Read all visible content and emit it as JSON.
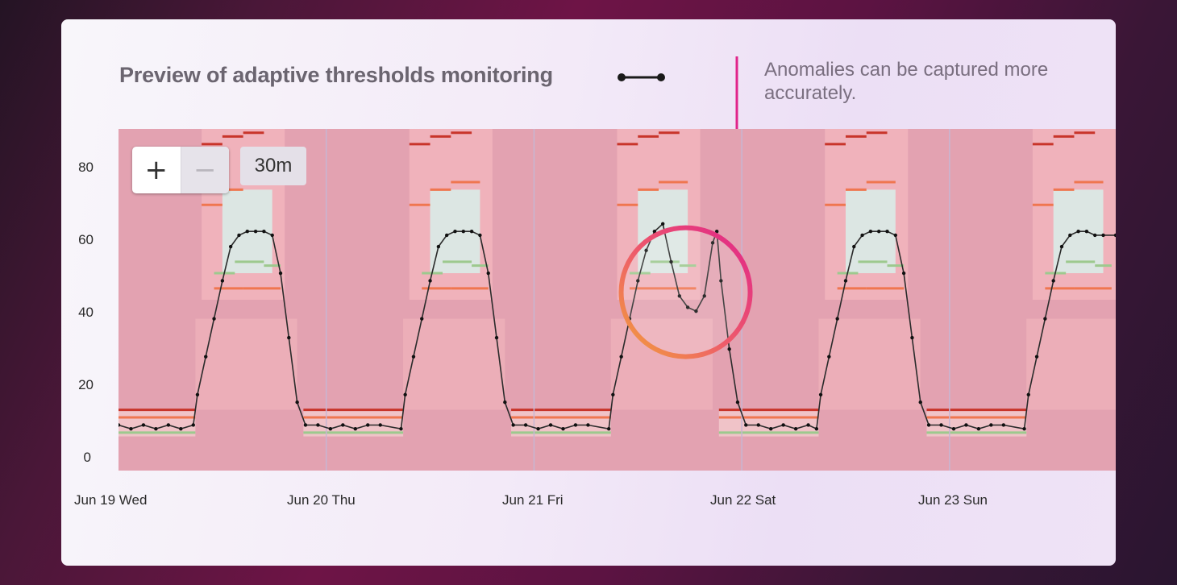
{
  "title": "Preview of adaptive thresholds monitoring",
  "annotation": "Anomalies can be captured more accurately.",
  "controls": {
    "zoom_in": "+",
    "zoom_out": "−",
    "range": "30m"
  },
  "colors": {
    "accent": "#e0248a",
    "line": "#2b2b2b",
    "outer_band": "#f2b5bd",
    "inner_band": "#dce6e3",
    "threshold_high": "#c8342a",
    "threshold_mid": "#ef7650",
    "threshold_low": "#9dc98e"
  },
  "chart_data": {
    "type": "line",
    "title": "",
    "xlabel": "",
    "ylabel": "",
    "ylim": [
      0,
      90
    ],
    "xlim": [
      0,
      4.8
    ],
    "yticks": [
      "0",
      "20",
      "40",
      "60",
      "80"
    ],
    "xticks": [
      {
        "label": "Jun 19 Wed",
        "x": 0
      },
      {
        "label": "Jun 20 Thu",
        "x": 1
      },
      {
        "label": "Jun 21 Fri",
        "x": 2
      },
      {
        "label": "Jun 22 Sat",
        "x": 3
      },
      {
        "label": "Jun 23 Sun",
        "x": 4
      }
    ],
    "grid": false,
    "legend": "none",
    "series": [
      {
        "points": [
          [
            0.0,
            12
          ],
          [
            0.06,
            11
          ],
          [
            0.12,
            12
          ],
          [
            0.18,
            11
          ],
          [
            0.24,
            12
          ],
          [
            0.3,
            11
          ],
          [
            0.36,
            12
          ],
          [
            0.38,
            20
          ],
          [
            0.42,
            30
          ],
          [
            0.46,
            40
          ],
          [
            0.5,
            50
          ],
          [
            0.54,
            59
          ],
          [
            0.58,
            62
          ],
          [
            0.62,
            63
          ],
          [
            0.66,
            63
          ],
          [
            0.7,
            63
          ],
          [
            0.74,
            62
          ],
          [
            0.78,
            52
          ],
          [
            0.82,
            35
          ],
          [
            0.86,
            18
          ],
          [
            0.9,
            12
          ],
          [
            0.96,
            12
          ],
          [
            1.02,
            11
          ],
          [
            1.08,
            12
          ],
          [
            1.14,
            11
          ],
          [
            1.2,
            12
          ],
          [
            1.26,
            12
          ],
          [
            1.36,
            11
          ],
          [
            1.38,
            20
          ],
          [
            1.42,
            30
          ],
          [
            1.46,
            40
          ],
          [
            1.5,
            50
          ],
          [
            1.54,
            59
          ],
          [
            1.58,
            62
          ],
          [
            1.62,
            63
          ],
          [
            1.66,
            63
          ],
          [
            1.7,
            63
          ],
          [
            1.74,
            62
          ],
          [
            1.78,
            52
          ],
          [
            1.82,
            35
          ],
          [
            1.86,
            18
          ],
          [
            1.9,
            12
          ],
          [
            1.96,
            12
          ],
          [
            2.02,
            11
          ],
          [
            2.08,
            12
          ],
          [
            2.14,
            11
          ],
          [
            2.2,
            12
          ],
          [
            2.26,
            12
          ],
          [
            2.36,
            11
          ],
          [
            2.38,
            20
          ],
          [
            2.42,
            30
          ],
          [
            2.46,
            40
          ],
          [
            2.5,
            50
          ],
          [
            2.54,
            58
          ],
          [
            2.58,
            63
          ],
          [
            2.62,
            65
          ],
          [
            2.66,
            55
          ],
          [
            2.7,
            46
          ],
          [
            2.74,
            43
          ],
          [
            2.78,
            42
          ],
          [
            2.82,
            46
          ],
          [
            2.86,
            60
          ],
          [
            2.88,
            63
          ],
          [
            2.9,
            50
          ],
          [
            2.94,
            32
          ],
          [
            2.98,
            18
          ],
          [
            3.02,
            12
          ],
          [
            3.08,
            12
          ],
          [
            3.14,
            11
          ],
          [
            3.2,
            12
          ],
          [
            3.26,
            11
          ],
          [
            3.32,
            12
          ],
          [
            3.36,
            11
          ],
          [
            3.38,
            20
          ],
          [
            3.42,
            30
          ],
          [
            3.46,
            40
          ],
          [
            3.5,
            50
          ],
          [
            3.54,
            59
          ],
          [
            3.58,
            62
          ],
          [
            3.62,
            63
          ],
          [
            3.66,
            63
          ],
          [
            3.7,
            63
          ],
          [
            3.74,
            62
          ],
          [
            3.78,
            52
          ],
          [
            3.82,
            35
          ],
          [
            3.86,
            18
          ],
          [
            3.9,
            12
          ],
          [
            3.96,
            12
          ],
          [
            4.02,
            11
          ],
          [
            4.08,
            12
          ],
          [
            4.14,
            11
          ],
          [
            4.2,
            12
          ],
          [
            4.26,
            12
          ],
          [
            4.36,
            11
          ],
          [
            4.38,
            20
          ],
          [
            4.42,
            30
          ],
          [
            4.46,
            40
          ],
          [
            4.5,
            50
          ],
          [
            4.54,
            59
          ],
          [
            4.58,
            62
          ],
          [
            4.62,
            63
          ],
          [
            4.66,
            63
          ],
          [
            4.7,
            62
          ],
          [
            4.74,
            62
          ],
          [
            4.8,
            62
          ]
        ]
      }
    ],
    "bands": {
      "night_low": 9,
      "night_high": 16,
      "day_low": 45,
      "day_high": 90,
      "inner_day_low": 52,
      "inner_day_high": 74
    },
    "anomaly_highlight": {
      "x": 2.73,
      "y": 47
    }
  }
}
